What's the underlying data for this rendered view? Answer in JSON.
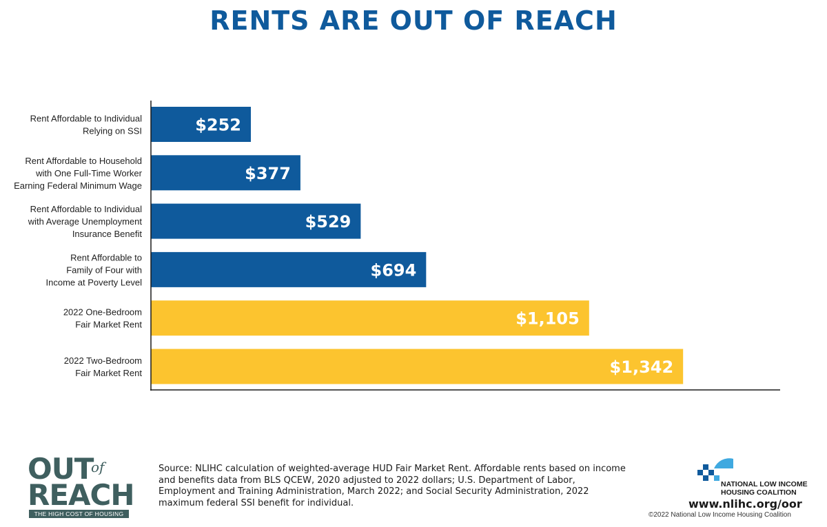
{
  "title": "RENTS ARE OUT OF REACH",
  "chart_data": {
    "type": "bar",
    "orientation": "horizontal",
    "categories": [
      [
        "Rent Affordable to Individual",
        "Relying on SSI"
      ],
      [
        "Rent Affordable to Household",
        "with One Full-Time Worker",
        "Earning Federal Minimum Wage"
      ],
      [
        "Rent Affordable to Individual",
        "with Average Unemployment",
        "Insurance Benefit"
      ],
      [
        "Rent Affordable to",
        "Family of Four with",
        "Income at Poverty Level"
      ],
      [
        "2022 One-Bedroom",
        "Fair Market Rent"
      ],
      [
        "2022 Two-Bedroom",
        "Fair Market Rent"
      ]
    ],
    "values": [
      252,
      377,
      529,
      694,
      1105,
      1342
    ],
    "value_labels": [
      "$252",
      "$377",
      "$529",
      "$694",
      "$1,105",
      "$1,342"
    ],
    "colors": [
      "#0f5a9c",
      "#0f5a9c",
      "#0f5a9c",
      "#0f5a9c",
      "#fcc42f",
      "#fcc42f"
    ],
    "xlim": [
      0,
      1500
    ],
    "xlabel": "",
    "ylabel": "",
    "grid": false,
    "legend": "none"
  },
  "logo": {
    "line1": "OUT",
    "line1_small": "of",
    "line2": "REACH",
    "tagline": "THE HIGH COST OF HOUSING"
  },
  "source": "Source: NLIHC calculation of weighted-average HUD Fair Market Rent. Affordable rents based on income and benefits data from BLS QCEW, 2020 adjusted to 2022 dollars; U.S. Department of Labor, Employment and Training Administration, March 2022; and Social Security Administration, 2022 maximum federal SSI benefit for individual.",
  "org": {
    "name_line1": "NATIONAL LOW INCOME",
    "name_line2": "HOUSING COALITION",
    "url": "www.nlihc.org/oor",
    "copyright": "©2022 National Low Income Housing Coalition",
    "colors": {
      "teal": "#3fa9e0",
      "navy": "#0f5a9c"
    }
  }
}
